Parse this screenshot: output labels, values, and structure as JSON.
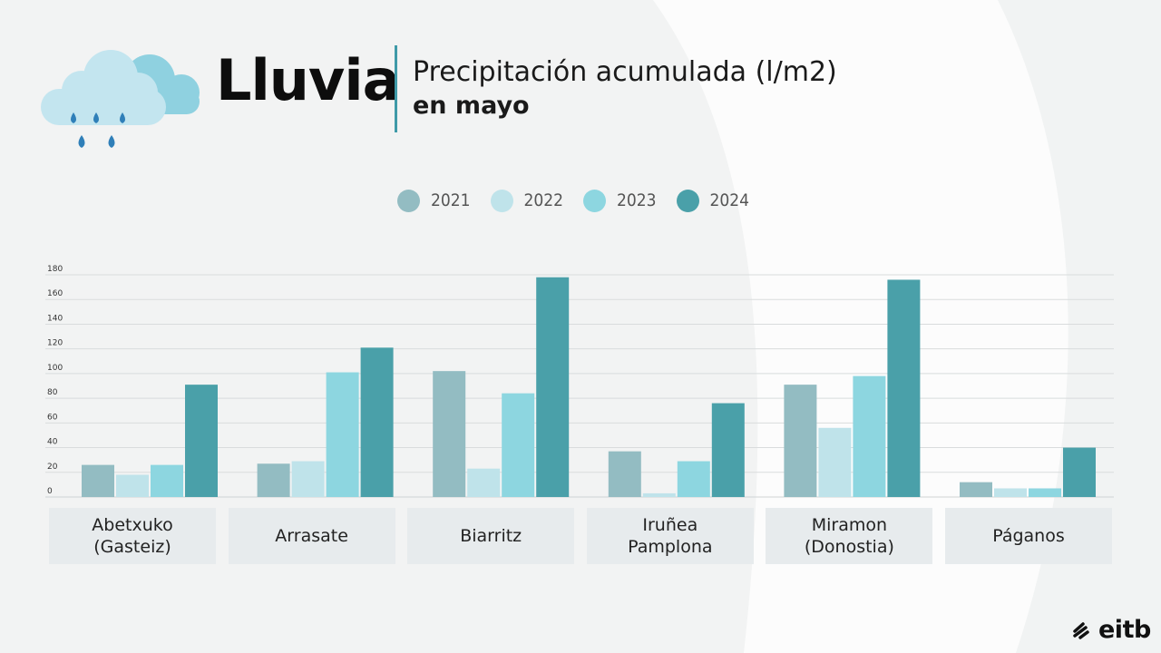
{
  "header": {
    "title": "Lluvia",
    "subtitle_line1": "Precipitación acumulada (l/m2)",
    "subtitle_line2": "en mayo"
  },
  "icons": {
    "weather": "rain-cloud-icon",
    "brand": "eitb-logo"
  },
  "brand": {
    "name": "eitb"
  },
  "colors": {
    "2021": "#93bcc2",
    "2022": "#bfe3ea",
    "2023": "#8dd6e0",
    "2024": "#4aa0a9",
    "category_box": "#e7ebed",
    "accent": "#3f9aa8"
  },
  "chart_data": {
    "type": "bar",
    "title": "Precipitación acumulada (l/m2) en mayo",
    "categories": [
      "Abetxuko\n(Gasteiz)",
      "Arrasate",
      "Biarritz",
      "Iruñea\nPamplona",
      "Miramon\n(Donostia)",
      "Páganos"
    ],
    "series": [
      {
        "name": "2021",
        "values": [
          26,
          27,
          102,
          37,
          91,
          12
        ]
      },
      {
        "name": "2022",
        "values": [
          18,
          29,
          23,
          3,
          56,
          7
        ]
      },
      {
        "name": "2023",
        "values": [
          26,
          101,
          84,
          29,
          98,
          7
        ]
      },
      {
        "name": "2024",
        "values": [
          91,
          121,
          178,
          76,
          176,
          40
        ]
      }
    ],
    "ylim": [
      0,
      180
    ],
    "yticks": [
      "0",
      "20",
      "40",
      "60",
      "80",
      "100",
      "120",
      "140",
      "160",
      "180"
    ],
    "grid": true,
    "legend_position": "top"
  }
}
